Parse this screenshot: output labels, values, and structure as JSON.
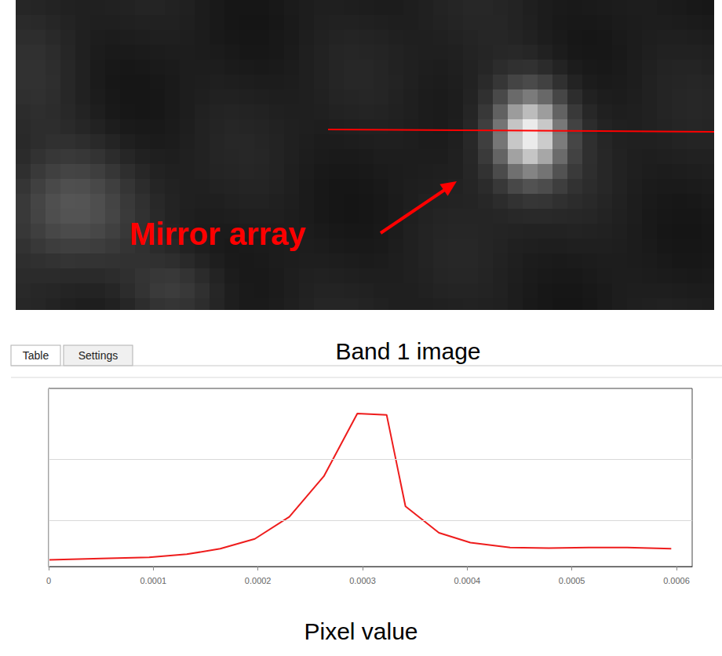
{
  "image": {
    "caption": "Band 1 image",
    "annotation": "Mirror array"
  },
  "tabs": [
    "Table",
    "Settings"
  ],
  "chart_data": {
    "type": "line",
    "caption": "Pixel value",
    "x": [
      0,
      5e-05,
      9.6e-05,
      0.000132,
      0.000164,
      0.000197,
      0.00023,
      0.000263,
      0.000295,
      0.000323,
      0.000341,
      0.000373,
      0.000403,
      0.000441,
      0.000478,
      0.000516,
      0.000553,
      0.000595
    ],
    "values": [
      36,
      38,
      40,
      45,
      54,
      70,
      106,
      172,
      274,
      272,
      123,
      80,
      64,
      56,
      55,
      56,
      56,
      54
    ],
    "color": "#ee1c1c",
    "xlim": [
      0,
      0.000615
    ],
    "xticks": [
      0,
      0.0001,
      0.0002,
      0.0003,
      0.0004,
      0.0005,
      0.0006
    ],
    "ylim": [
      25,
      315
    ],
    "yticks": [
      100,
      200
    ],
    "grid": true,
    "tick_labels": "x"
  }
}
